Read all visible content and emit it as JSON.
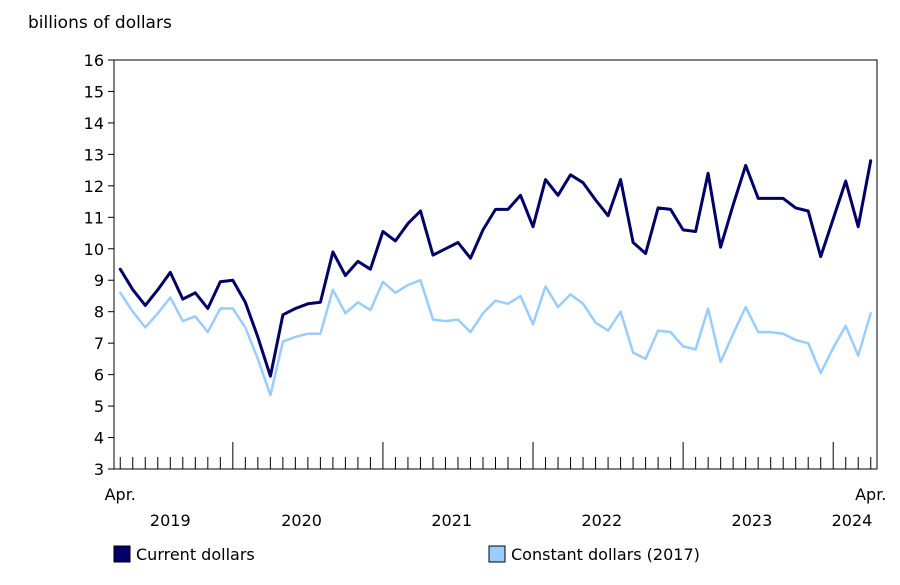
{
  "chart_data": {
    "type": "line",
    "title": "",
    "ylabel": "billions of dollars",
    "ylim": [
      3,
      16
    ],
    "yticks": [
      3,
      4,
      5,
      6,
      7,
      8,
      9,
      10,
      11,
      12,
      13,
      14,
      15,
      16
    ],
    "grid": false,
    "legend_placement": "bottom",
    "x_start": "2019-04",
    "x_end": "2024-04",
    "x_edge_labels": {
      "start": "Apr.",
      "end": "Apr."
    },
    "year_labels": [
      "2019",
      "2020",
      "2021",
      "2022",
      "2023",
      "2024"
    ],
    "x": [
      "2019-04",
      "2019-05",
      "2019-06",
      "2019-07",
      "2019-08",
      "2019-09",
      "2019-10",
      "2019-11",
      "2019-12",
      "2020-01",
      "2020-02",
      "2020-03",
      "2020-04",
      "2020-05",
      "2020-06",
      "2020-07",
      "2020-08",
      "2020-09",
      "2020-10",
      "2020-11",
      "2020-12",
      "2021-01",
      "2021-02",
      "2021-03",
      "2021-04",
      "2021-05",
      "2021-06",
      "2021-07",
      "2021-08",
      "2021-09",
      "2021-10",
      "2021-11",
      "2021-12",
      "2022-01",
      "2022-02",
      "2022-03",
      "2022-04",
      "2022-05",
      "2022-06",
      "2022-07",
      "2022-08",
      "2022-09",
      "2022-10",
      "2022-11",
      "2022-12",
      "2023-01",
      "2023-02",
      "2023-03",
      "2023-04",
      "2023-05",
      "2023-06",
      "2023-07",
      "2023-08",
      "2023-09",
      "2023-10",
      "2023-11",
      "2023-12",
      "2024-01",
      "2024-02",
      "2024-03",
      "2024-04"
    ],
    "series": [
      {
        "name": "Current dollars",
        "color": "#000066",
        "values": [
          9.35,
          8.7,
          8.2,
          8.7,
          9.25,
          8.4,
          8.6,
          8.1,
          8.95,
          9.0,
          8.3,
          7.2,
          5.95,
          7.9,
          8.1,
          8.25,
          8.3,
          9.9,
          9.15,
          9.6,
          9.35,
          10.55,
          10.25,
          10.8,
          11.2,
          9.8,
          10.0,
          10.2,
          9.7,
          10.6,
          11.25,
          11.25,
          11.7,
          10.7,
          12.2,
          11.7,
          12.35,
          12.1,
          11.55,
          11.05,
          12.2,
          10.2,
          9.85,
          11.3,
          11.25,
          10.6,
          10.55,
          12.4,
          10.05,
          11.4,
          12.65,
          11.6,
          11.6,
          11.6,
          11.3,
          11.2,
          9.75,
          10.95,
          12.15,
          10.7,
          12.8
        ]
      },
      {
        "name": "Constant dollars (2017)",
        "color": "#99ccff",
        "values": [
          8.6,
          8.0,
          7.5,
          7.95,
          8.45,
          7.7,
          7.85,
          7.35,
          8.1,
          8.1,
          7.5,
          6.5,
          5.35,
          7.05,
          7.2,
          7.3,
          7.3,
          8.7,
          7.95,
          8.3,
          8.05,
          8.95,
          8.6,
          8.85,
          9.0,
          7.75,
          7.7,
          7.75,
          7.35,
          7.95,
          8.35,
          8.25,
          8.5,
          7.6,
          8.8,
          8.15,
          8.55,
          8.25,
          7.65,
          7.4,
          8.0,
          6.7,
          6.5,
          7.4,
          7.35,
          6.9,
          6.8,
          8.1,
          6.4,
          7.3,
          8.15,
          7.35,
          7.35,
          7.3,
          7.1,
          7.0,
          6.05,
          6.85,
          7.55,
          6.6,
          7.95
        ]
      }
    ]
  }
}
